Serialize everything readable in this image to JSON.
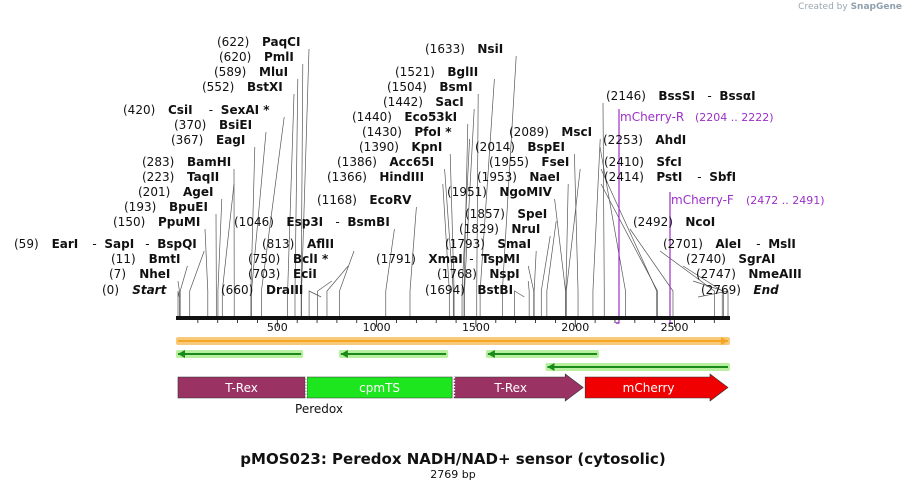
{
  "credit": {
    "prefix": "Created by",
    "brand": "SnapGene"
  },
  "title": "pMOS023: Peredox NADH/NAD+ sensor (cytosolic)",
  "subtitle": "2769 bp",
  "sequence_length": 2769,
  "ruler_ticks": [
    500,
    1000,
    1500,
    2000,
    2500
  ],
  "colors": {
    "orf_bar": "#f5a623",
    "orf_edge": "#f7c97a",
    "green_arrow": "#1a8a1a",
    "green_glow": "#b8f0a0",
    "trex": "#9b3264",
    "cpmts": "#1ee61e",
    "mcherry": "#f00000",
    "primer": "#9b30c8"
  },
  "sites": [
    {
      "name": "PaqCI",
      "pos": "(622)"
    },
    {
      "name": "PmlI",
      "pos": "(620)"
    },
    {
      "name": "MluI",
      "pos": "(589)"
    },
    {
      "name": "BstXI",
      "pos": "(552)"
    },
    {
      "name": "CsiI - SexAI *",
      "pos": "(420)"
    },
    {
      "name": "BsiEI",
      "pos": "(370)"
    },
    {
      "name": "EagI",
      "pos": "(367)"
    },
    {
      "name": "BamHI",
      "pos": "(283)"
    },
    {
      "name": "TaqII",
      "pos": "(223)"
    },
    {
      "name": "AgeI",
      "pos": "(201)"
    },
    {
      "name": "BpuEI",
      "pos": "(193)"
    },
    {
      "name": "PpuMI",
      "pos": "(150)"
    },
    {
      "name": "EarI - SapI - BspQI",
      "pos": "(59)"
    },
    {
      "name": "BmtI",
      "pos": "(11)"
    },
    {
      "name": "NheI",
      "pos": "(7)"
    },
    {
      "name": "Start",
      "pos": "(0)"
    },
    {
      "name": "Esp3I - BsmBI",
      "pos": "(1046)"
    },
    {
      "name": "AflII",
      "pos": "(813)"
    },
    {
      "name": "BclI *",
      "pos": "(750)"
    },
    {
      "name": "EciI",
      "pos": "(703)"
    },
    {
      "name": "DraIII",
      "pos": "(660)"
    },
    {
      "name": "EcoRV",
      "pos": "(1168)"
    },
    {
      "name": "NsiI",
      "pos": "(1633)"
    },
    {
      "name": "BglII",
      "pos": "(1521)"
    },
    {
      "name": "BsmI",
      "pos": "(1504)"
    },
    {
      "name": "SacI",
      "pos": "(1442)"
    },
    {
      "name": "Eco53kI",
      "pos": "(1440)"
    },
    {
      "name": "PfoI *",
      "pos": "(1430)"
    },
    {
      "name": "KpnI",
      "pos": "(1390)"
    },
    {
      "name": "Acc65I",
      "pos": "(1386)"
    },
    {
      "name": "HindIII",
      "pos": "(1366)"
    },
    {
      "name": "XmaI - TspMI",
      "pos": "(1791)"
    },
    {
      "name": "NspI",
      "pos": "(1768)"
    },
    {
      "name": "BstBI",
      "pos": "(1694)"
    },
    {
      "name": "MscI",
      "pos": "(2089)"
    },
    {
      "name": "BspEI",
      "pos": "(2014)"
    },
    {
      "name": "FseI",
      "pos": "(1955)"
    },
    {
      "name": "NaeI",
      "pos": "(1953)"
    },
    {
      "name": "NgoMIV",
      "pos": "(1951)"
    },
    {
      "name": "SpeI",
      "pos": "(1857)"
    },
    {
      "name": "NruI",
      "pos": "(1829)"
    },
    {
      "name": "SmaI",
      "pos": "(1793)"
    },
    {
      "name": "BssSI - BssαI",
      "pos": "(2146)"
    },
    {
      "name": "AhdI",
      "pos": "(2253)"
    },
    {
      "name": "SfcI",
      "pos": "(2410)"
    },
    {
      "name": "PstI - SbfI",
      "pos": "(2414)"
    },
    {
      "name": "NcoI",
      "pos": "(2492)"
    },
    {
      "name": "AleI - MslI",
      "pos": "(2701)"
    },
    {
      "name": "SgrAI",
      "pos": "(2740)"
    },
    {
      "name": "NmeAIII",
      "pos": "(2747)"
    },
    {
      "name": "End",
      "pos": "(2769)"
    }
  ],
  "primers": [
    {
      "name": "mCherry-R",
      "range": "(2204 .. 2222)"
    },
    {
      "name": "mCherry-F",
      "range": "(2472 .. 2491)"
    }
  ],
  "features": [
    {
      "name": "T-Rex"
    },
    {
      "name": "cpmTS"
    },
    {
      "name": "T-Rex"
    },
    {
      "name": "mCherry"
    }
  ],
  "feature_group_label": "Peredox"
}
